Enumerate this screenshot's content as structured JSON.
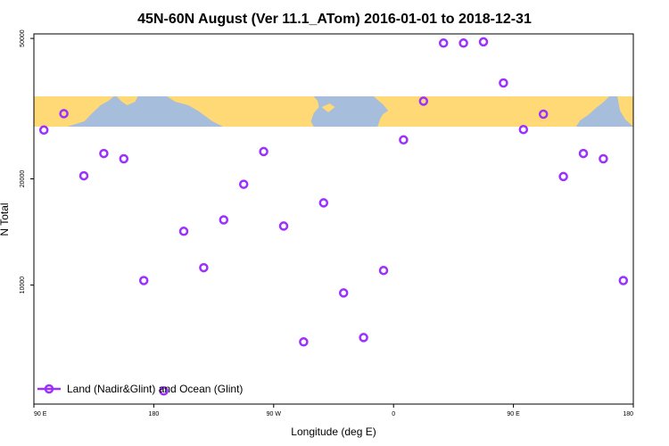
{
  "chart_data": {
    "type": "scatter",
    "title": "45N-60N August (Ver 11.1_ATom)   2016-01-01 to 2018-12-31",
    "xlabel": "Longitude (deg E)",
    "ylabel": "N Total",
    "x_ticks": [
      {
        "value": 90,
        "label": "90 E"
      },
      {
        "value": 180,
        "label": "180"
      },
      {
        "value": 270,
        "label": "90 W"
      },
      {
        "value": 360,
        "label": "0"
      },
      {
        "value": 450,
        "label": "90 E"
      },
      {
        "value": 540,
        "label": "180"
      }
    ],
    "y_ticks": [
      {
        "value": 10000,
        "label": "10000"
      },
      {
        "value": 20000,
        "label": "20000"
      },
      {
        "value": 50000,
        "label": "50000"
      }
    ],
    "xlim": [
      90,
      540
    ],
    "y_scale": "log",
    "ylim": [
      4600,
      51500
    ],
    "map_band": {
      "lat_range": [
        45,
        60
      ],
      "land_color": "#fed976",
      "ocean_color": "#a6bddb"
    },
    "series": [
      {
        "name": "Land (Nadir&Glint) and Ocean (Glint)",
        "color": "#9b30ff",
        "marker": "open-circle",
        "points": [
          {
            "x": 97.5,
            "y": 27500
          },
          {
            "x": 112.5,
            "y": 30600
          },
          {
            "x": 127.5,
            "y": 20400
          },
          {
            "x": 142.5,
            "y": 23600
          },
          {
            "x": 157.5,
            "y": 22800
          },
          {
            "x": 172.5,
            "y": 10300
          },
          {
            "x": 187.5,
            "y": 5010
          },
          {
            "x": 202.5,
            "y": 14200
          },
          {
            "x": 217.5,
            "y": 11200
          },
          {
            "x": 232.5,
            "y": 15300
          },
          {
            "x": 247.5,
            "y": 19300
          },
          {
            "x": 262.5,
            "y": 23900
          },
          {
            "x": 277.5,
            "y": 14700
          },
          {
            "x": 292.5,
            "y": 6900
          },
          {
            "x": 307.5,
            "y": 17100
          },
          {
            "x": 322.5,
            "y": 9500
          },
          {
            "x": 337.5,
            "y": 7100
          },
          {
            "x": 352.5,
            "y": 11000
          },
          {
            "x": 367.5,
            "y": 25800
          },
          {
            "x": 382.5,
            "y": 33200
          },
          {
            "x": 397.5,
            "y": 48500
          },
          {
            "x": 412.5,
            "y": 48500
          },
          {
            "x": 427.5,
            "y": 48900
          },
          {
            "x": 442.5,
            "y": 37400
          },
          {
            "x": 457.5,
            "y": 27600
          },
          {
            "x": 472.5,
            "y": 30500
          },
          {
            "x": 487.5,
            "y": 20300
          },
          {
            "x": 502.5,
            "y": 23600
          },
          {
            "x": 517.5,
            "y": 22800
          },
          {
            "x": 532.5,
            "y": 10300
          }
        ]
      }
    ],
    "legend_position": "bottom-left",
    "grid": false
  }
}
